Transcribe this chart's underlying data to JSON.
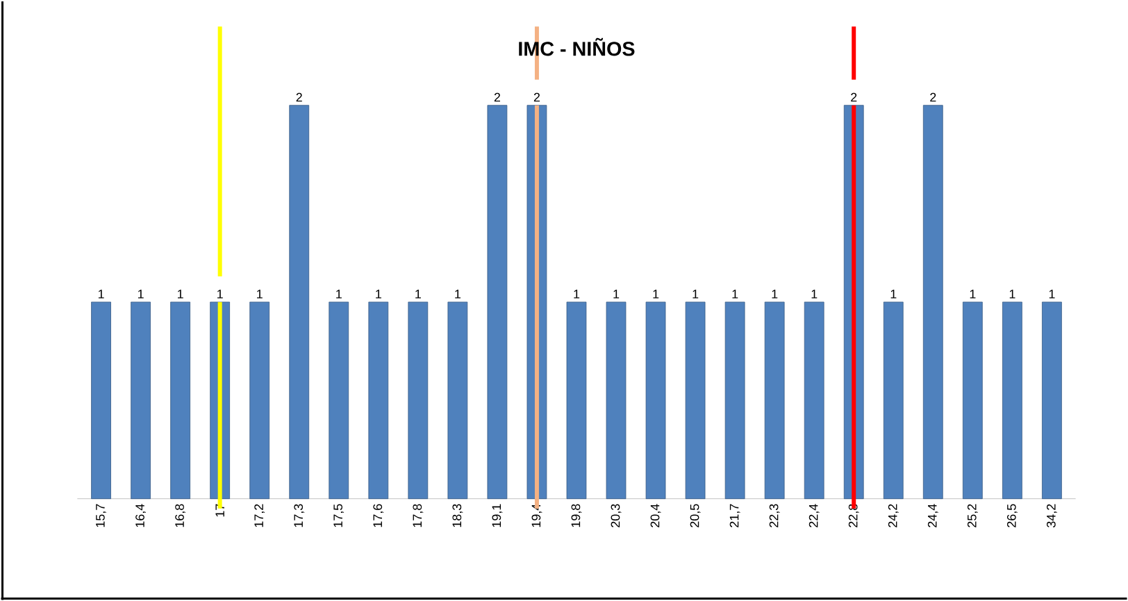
{
  "chart_data": {
    "type": "bar",
    "title": "IMC - NIÑOS",
    "categories": [
      "15,7",
      "16,4",
      "16,8",
      "17",
      "17,2",
      "17,3",
      "17,5",
      "17,6",
      "17,8",
      "18,3",
      "19,1",
      "19,4",
      "19,8",
      "20,3",
      "20,4",
      "20,5",
      "21,7",
      "22,3",
      "22,4",
      "22,8",
      "24,2",
      "24,4",
      "25,2",
      "26,5",
      "34,2"
    ],
    "values": [
      1,
      1,
      1,
      1,
      1,
      2,
      1,
      1,
      1,
      1,
      2,
      2,
      1,
      1,
      1,
      1,
      1,
      1,
      1,
      2,
      1,
      2,
      1,
      1,
      1
    ],
    "color": "#4f81bd",
    "data_labels": true,
    "ref_lines": [
      {
        "axis": "x",
        "value": "17",
        "color": "#ffff00"
      },
      {
        "axis": "x",
        "value": "19,4",
        "color": "#f4b183"
      },
      {
        "axis": "x",
        "value": "22,8",
        "color": "#ff0000"
      }
    ]
  }
}
